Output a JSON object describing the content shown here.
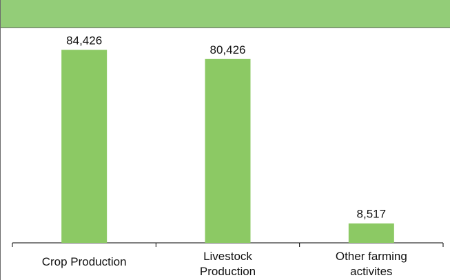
{
  "header": {
    "fill": "#93cd78"
  },
  "chart_data": {
    "type": "bar",
    "categories": [
      [
        "Crop Production"
      ],
      [
        "Livestock",
        "Production"
      ],
      [
        "Other farming",
        "activites"
      ]
    ],
    "values": [
      84426,
      80426,
      8517
    ],
    "data_labels": [
      "84,426",
      "80,426",
      "8,517"
    ],
    "title": "",
    "xlabel": "",
    "ylabel": "",
    "ylim": [
      0,
      90000
    ],
    "grid": false,
    "legend": "none",
    "bar_color": "#8cc964",
    "axis_color": "#000000"
  }
}
